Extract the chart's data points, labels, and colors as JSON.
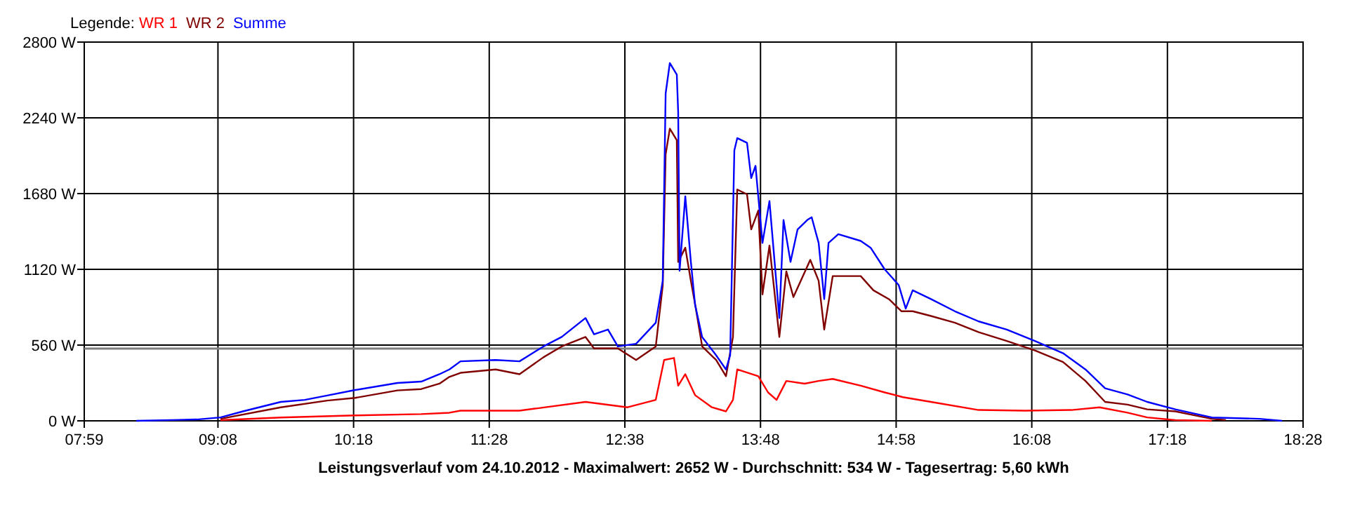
{
  "chart_data": {
    "type": "line",
    "legend_title": "Legende:",
    "legend": "top left",
    "grid": true,
    "xlabel": "Leistungsverlauf vom 24.10.2012 - Maximalwert: 2652 W - Durchschnitt: 534 W - Tagesertrag: 5,60 kWh",
    "xlim": [
      7.9833,
      18.4667
    ],
    "xticks": [
      {
        "value": 7.9833,
        "label": "07:59"
      },
      {
        "value": 9.1333,
        "label": "09:08"
      },
      {
        "value": 10.3,
        "label": "10:18"
      },
      {
        "value": 11.4667,
        "label": "11:28"
      },
      {
        "value": 12.6333,
        "label": "12:38"
      },
      {
        "value": 13.8,
        "label": "13:48"
      },
      {
        "value": 14.9667,
        "label": "14:58"
      },
      {
        "value": 16.1333,
        "label": "16:08"
      },
      {
        "value": 17.3,
        "label": "17:18"
      },
      {
        "value": 18.4667,
        "label": "18:28"
      }
    ],
    "ylim": [
      0,
      2800
    ],
    "yticks": [
      {
        "value": 0,
        "label": "0 W"
      },
      {
        "value": 560,
        "label": "560 W"
      },
      {
        "value": 1120,
        "label": "1120 W"
      },
      {
        "value": 1680,
        "label": "1680 W"
      },
      {
        "value": 2240,
        "label": "2240 W"
      },
      {
        "value": 2800,
        "label": "2800 W"
      }
    ],
    "ref_lines": [
      {
        "axis": "y",
        "value": 534,
        "color": "#808080"
      }
    ],
    "series": [
      {
        "name": "WR 1",
        "color": "#ff0000",
        "x": [
          9.155,
          9.674,
          10.314,
          10.882,
          11.124,
          11.22,
          11.727,
          12.295,
          12.657,
          12.899,
          12.971,
          13.056,
          13.092,
          13.153,
          13.237,
          13.382,
          13.503,
          13.563,
          13.6,
          13.781,
          13.865,
          13.938,
          14.022,
          14.179,
          14.3,
          14.421,
          14.662,
          14.868,
          15.025,
          15.266,
          15.677,
          16.075,
          16.474,
          16.716,
          16.957,
          17.126,
          17.368,
          17.682
        ],
        "values": [
          5,
          25,
          40,
          50,
          60,
          75,
          75,
          140,
          100,
          155,
          450,
          465,
          260,
          345,
          190,
          100,
          70,
          155,
          380,
          330,
          210,
          155,
          295,
          275,
          295,
          310,
          260,
          210,
          175,
          140,
          80,
          75,
          80,
          100,
          60,
          25,
          5,
          0
        ]
      },
      {
        "name": "WR 2",
        "color": "#800000",
        "x": [
          9.155,
          9.674,
          10.073,
          10.314,
          10.677,
          10.882,
          11.039,
          11.124,
          11.22,
          11.522,
          11.727,
          11.933,
          12.09,
          12.295,
          12.368,
          12.573,
          12.73,
          12.899,
          12.959,
          12.984,
          13.02,
          13.08,
          13.092,
          13.153,
          13.201,
          13.237,
          13.298,
          13.418,
          13.503,
          13.563,
          13.6,
          13.684,
          13.72,
          13.781,
          13.817,
          13.877,
          13.962,
          14.022,
          14.083,
          14.228,
          14.3,
          14.348,
          14.421,
          14.541,
          14.662,
          14.771,
          14.904,
          15.013,
          15.109,
          15.266,
          15.472,
          15.677,
          15.918,
          16.16,
          16.402,
          16.595,
          16.764,
          16.957,
          17.126,
          17.368,
          17.682,
          17.803
        ],
        "values": [
          15,
          100,
          150,
          170,
          225,
          235,
          275,
          325,
          355,
          380,
          345,
          470,
          550,
          620,
          535,
          535,
          450,
          550,
          1000,
          1970,
          2160,
          2075,
          1175,
          1280,
          1035,
          865,
          550,
          450,
          330,
          620,
          1710,
          1675,
          1415,
          1555,
          935,
          1295,
          620,
          1105,
          915,
          1190,
          1035,
          675,
          1070,
          1070,
          1070,
          965,
          900,
          810,
          810,
          775,
          725,
          655,
          590,
          520,
          435,
          295,
          140,
          120,
          85,
          70,
          15,
          5
        ]
      },
      {
        "name": "Summe",
        "color": "#0000ff",
        "x": [
          8.43,
          8.95,
          9.155,
          9.348,
          9.674,
          9.88,
          10.073,
          10.314,
          10.677,
          10.882,
          11.039,
          11.124,
          11.22,
          11.522,
          11.727,
          11.933,
          12.09,
          12.295,
          12.368,
          12.488,
          12.573,
          12.73,
          12.899,
          12.959,
          12.984,
          13.02,
          13.08,
          13.092,
          13.104,
          13.153,
          13.201,
          13.237,
          13.298,
          13.418,
          13.503,
          13.539,
          13.575,
          13.6,
          13.684,
          13.72,
          13.757,
          13.817,
          13.877,
          13.962,
          13.998,
          14.058,
          14.119,
          14.203,
          14.24,
          14.3,
          14.348,
          14.385,
          14.469,
          14.662,
          14.747,
          14.868,
          14.988,
          15.049,
          15.109,
          15.266,
          15.472,
          15.677,
          15.918,
          16.16,
          16.402,
          16.595,
          16.764,
          16.957,
          17.126,
          17.368,
          17.682,
          18.093,
          18.286
        ],
        "values": [
          0,
          10,
          25,
          70,
          140,
          155,
          187,
          228,
          280,
          290,
          345,
          380,
          440,
          450,
          440,
          550,
          620,
          760,
          640,
          675,
          550,
          570,
          725,
          1035,
          2420,
          2645,
          2560,
          2280,
          1110,
          1660,
          1175,
          860,
          620,
          485,
          380,
          485,
          2000,
          2090,
          2055,
          1795,
          1885,
          1315,
          1625,
          760,
          1485,
          1175,
          1415,
          1485,
          1505,
          1315,
          900,
          1315,
          1380,
          1330,
          1280,
          1120,
          1005,
          830,
          965,
          900,
          810,
          735,
          675,
          590,
          500,
          380,
          240,
          195,
          140,
          85,
          25,
          15,
          0
        ]
      }
    ]
  }
}
